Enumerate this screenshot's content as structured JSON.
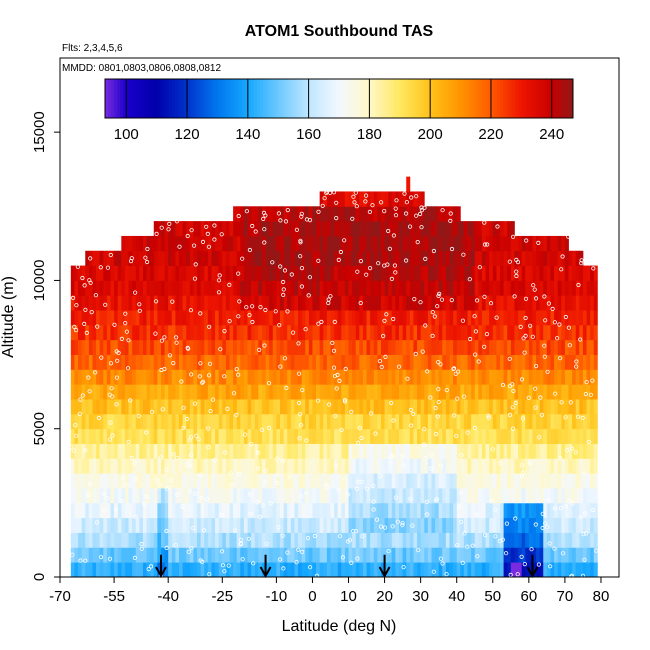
{
  "chart_data": {
    "type": "heatmap",
    "title": "ATOM1 Southbound TAS",
    "flights_note": "Flts: 2,3,4,5,6",
    "dates_note": "MMDD: 0801,0803,0806,0808,0812",
    "xlabel": "Latitude (deg N)",
    "ylabel": "Altitude (m)",
    "xlim": [
      -70,
      85
    ],
    "ylim": [
      0,
      17500
    ],
    "x_ticks": [
      -70,
      -55,
      -40,
      -25,
      -10,
      0,
      10,
      20,
      30,
      40,
      50,
      60,
      70,
      80
    ],
    "x_tick_labels": [
      "-70",
      "-55",
      "-40",
      "-25",
      "-10",
      "0",
      "10",
      "20",
      "30",
      "40",
      "50",
      "60",
      "70",
      "80"
    ],
    "y_ticks": [
      0,
      5000,
      10000,
      15000
    ],
    "y_tick_labels": [
      "0",
      "5000",
      "10000",
      "15000"
    ],
    "colorbar": {
      "min": 93,
      "max": 247,
      "ticks": [
        100,
        120,
        140,
        160,
        180,
        200,
        220,
        240
      ],
      "tick_labels": [
        "100",
        "120",
        "140",
        "160",
        "180",
        "200",
        "220",
        "240"
      ],
      "gradient": [
        {
          "v": 93,
          "color": "#7a2be0"
        },
        {
          "v": 100,
          "color": "#1a00cc"
        },
        {
          "v": 110,
          "color": "#0000aa"
        },
        {
          "v": 120,
          "color": "#0033cc"
        },
        {
          "v": 130,
          "color": "#0077ee"
        },
        {
          "v": 140,
          "color": "#16a8ff"
        },
        {
          "v": 150,
          "color": "#6cc8ff"
        },
        {
          "v": 160,
          "color": "#bfe6ff"
        },
        {
          "v": 170,
          "color": "#f3f8ff"
        },
        {
          "v": 180,
          "color": "#fff8c8"
        },
        {
          "v": 190,
          "color": "#ffe860"
        },
        {
          "v": 200,
          "color": "#ffc21a"
        },
        {
          "v": 210,
          "color": "#ff9400"
        },
        {
          "v": 220,
          "color": "#ff5a00"
        },
        {
          "v": 230,
          "color": "#ee1400"
        },
        {
          "v": 240,
          "color": "#c80000"
        },
        {
          "v": 247,
          "color": "#921818"
        }
      ]
    },
    "altitude_bin_m": 500,
    "latitude_bin_deg": 1,
    "latitude_extent_by_altitude": [
      {
        "alt_max": 10500,
        "lat_min": -67,
        "lat_max": 79
      },
      {
        "alt_max": 11000,
        "lat_min": -63,
        "lat_max": 75
      },
      {
        "alt_max": 11500,
        "lat_min": -53,
        "lat_max": 71
      },
      {
        "alt_max": 12000,
        "lat_min": -44,
        "lat_max": 56
      },
      {
        "alt_max": 12500,
        "lat_min": -22,
        "lat_max": 41
      },
      {
        "alt_max": 13000,
        "lat_min": 2,
        "lat_max": 31
      },
      {
        "alt_max": 13500,
        "lat_min": 26,
        "lat_max": 27
      }
    ],
    "tas_profile_by_altitude": [
      {
        "alt": 250,
        "tas": 142
      },
      {
        "alt": 750,
        "tas": 150
      },
      {
        "alt": 1250,
        "tas": 158
      },
      {
        "alt": 1750,
        "tas": 163
      },
      {
        "alt": 2250,
        "tas": 167
      },
      {
        "alt": 2750,
        "tas": 172
      },
      {
        "alt": 3250,
        "tas": 175
      },
      {
        "alt": 3750,
        "tas": 180
      },
      {
        "alt": 4250,
        "tas": 185
      },
      {
        "alt": 4750,
        "tas": 192
      },
      {
        "alt": 5250,
        "tas": 195
      },
      {
        "alt": 5750,
        "tas": 200
      },
      {
        "alt": 6250,
        "tas": 206
      },
      {
        "alt": 6750,
        "tas": 212
      },
      {
        "alt": 7250,
        "tas": 218
      },
      {
        "alt": 7750,
        "tas": 222
      },
      {
        "alt": 8250,
        "tas": 226
      },
      {
        "alt": 8750,
        "tas": 229
      },
      {
        "alt": 9250,
        "tas": 232
      },
      {
        "alt": 9750,
        "tas": 235
      },
      {
        "alt": 10250,
        "tas": 236
      },
      {
        "alt": 10750,
        "tas": 238
      },
      {
        "alt": 11250,
        "tas": 238
      },
      {
        "alt": 11750,
        "tas": 238
      },
      {
        "alt": 12250,
        "tas": 236
      },
      {
        "alt": 12750,
        "tas": 234
      },
      {
        "alt": 13250,
        "tas": 232
      }
    ],
    "regional_anomalies": [
      {
        "lat_min": -20,
        "lat_max": 45,
        "alt_min": 9000,
        "alt_max": 12500,
        "delta_tas": 6
      },
      {
        "lat_min": 53,
        "lat_max": 64,
        "alt_min": 0,
        "alt_max": 2500,
        "delta_tas": -30
      },
      {
        "lat_min": 55,
        "lat_max": 58,
        "alt_min": 0,
        "alt_max": 500,
        "delta_tas": -45
      },
      {
        "lat_min": -43,
        "lat_max": -40,
        "alt_min": 0,
        "alt_max": 3000,
        "delta_tas": -12
      },
      {
        "lat_min": 10,
        "lat_max": 40,
        "alt_min": 1500,
        "alt_max": 4500,
        "delta_tas": -10
      }
    ],
    "arrow_markers_lat": [
      -42,
      -13,
      20,
      61
    ],
    "observation_points_note": "white open circles mark individual flight observations"
  }
}
